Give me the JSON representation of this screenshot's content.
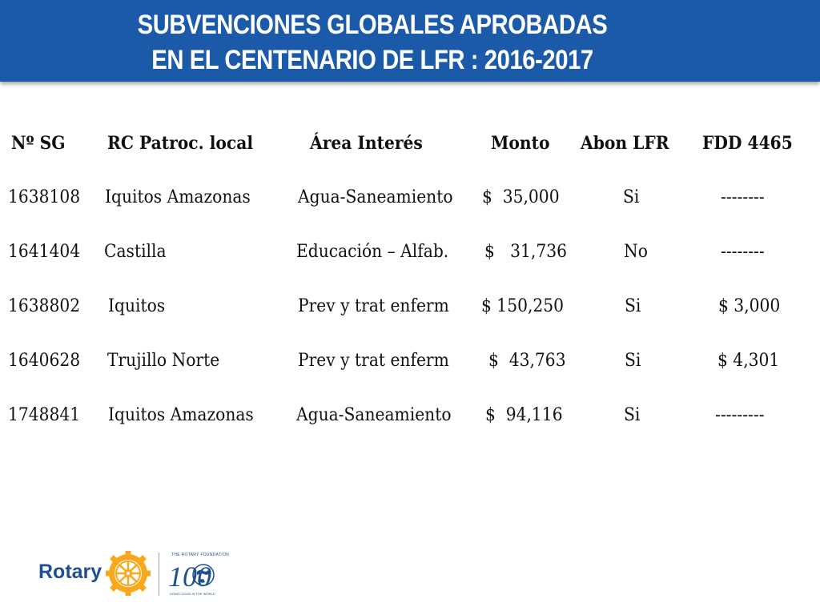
{
  "slide": {
    "title_line1": "SUBVENCIONES GLOBALES APROBADAS",
    "title_line2": "EN EL CENTENARIO DE LFR : 2016-2017"
  },
  "table": {
    "headers": [
      "Nº SG",
      "RC Patroc. local",
      "Área Interés",
      "Monto",
      "Abon LFR",
      "FDD 4465"
    ],
    "rows": [
      [
        "1638108",
        "Iquitos Amazonas",
        "Agua-Saneamiento",
        "$  35,000",
        "Si",
        "--------"
      ],
      [
        "1641404",
        "Castilla",
        "Educación – Alfab.",
        "$   31,736",
        "No",
        "--------"
      ],
      [
        "1638802",
        "Iquitos",
        "Prev y trat enferm",
        "$ 150,250",
        "Si",
        "$ 3,000"
      ],
      [
        "1640628",
        "Trujillo Norte",
        "Prev y trat enferm",
        "$  43,763",
        "Si",
        "$ 4,301"
      ],
      [
        "1748841",
        "Iquitos Amazonas",
        "Agua-Saneamiento",
        "$  94,116",
        "Si",
        "---------"
      ]
    ]
  },
  "footer": {
    "rotary_text": "Rotary",
    "foundation_text": "THE ROTARY FOUNDATION",
    "centennial_text": "100",
    "tagline": "DOING GOOD IN THE WORLD",
    "colors": {
      "blue": "#1d4f91",
      "gold": "#f7a81b",
      "header": "#1a5aa8"
    },
    "icons": [
      "rotary-wheel-icon",
      "centennial-globe-icon"
    ]
  }
}
